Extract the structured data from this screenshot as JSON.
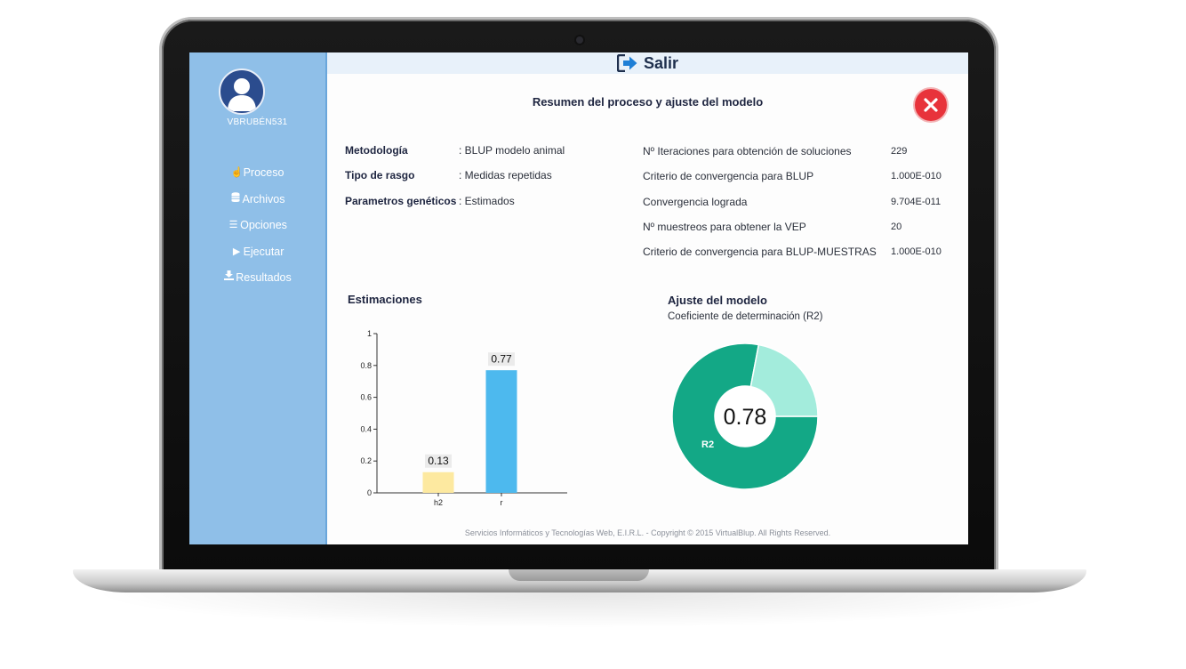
{
  "header": {
    "exit_label": "Salir"
  },
  "sidebar": {
    "username": "VBRUBÉN531",
    "items": [
      {
        "label": "Proceso",
        "icon": "hand-pointer-icon"
      },
      {
        "label": "Archivos",
        "icon": "database-icon"
      },
      {
        "label": "Opciones",
        "icon": "list-icon"
      },
      {
        "label": "Ejecutar",
        "icon": "play-icon"
      },
      {
        "label": "Resultados",
        "icon": "download-icon"
      }
    ]
  },
  "main": {
    "title": "Resumen del proceso y ajuste del modelo",
    "summary_left": [
      {
        "label": "Metodología",
        "value": ": BLUP modelo animal"
      },
      {
        "label": "Tipo de rasgo",
        "value": ": Medidas repetidas"
      },
      {
        "label": "Parametros genéticos",
        "value": ": Estimados"
      }
    ],
    "summary_right": [
      {
        "label": "Nº Iteraciones para obtención de soluciones",
        "value": "229"
      },
      {
        "label": "Criterio de convergencia para BLUP",
        "value": "1.000E-010"
      },
      {
        "label": "Convergencia lograda",
        "value": "9.704E-011"
      },
      {
        "label": "Nº muestreos para obtener la VEP",
        "value": "20"
      },
      {
        "label": "Criterio de convergencia para BLUP-MUESTRAS",
        "value": "1.000E-010"
      }
    ],
    "estimations_title": "Estimaciones",
    "fit_title": "Ajuste del modelo",
    "fit_subtitle": "Coeficiente de determinación (R2)"
  },
  "chart_data": [
    {
      "type": "bar",
      "title": "Estimaciones",
      "categories": [
        "h2",
        "r"
      ],
      "values": [
        0.13,
        0.77
      ],
      "value_labels": [
        "0.13",
        "0.77"
      ],
      "colors": [
        "#fde9a0",
        "#4db9ee"
      ],
      "ylim": [
        0,
        1
      ],
      "yticks": [
        "0",
        "0.2",
        "0.4",
        "0.6",
        "0.8",
        "1"
      ],
      "ytick_values": [
        0,
        0.2,
        0.4,
        0.6,
        0.8,
        1
      ],
      "grid": false
    },
    {
      "type": "pie",
      "title": "Ajuste del modelo",
      "slices": [
        {
          "label": "R2",
          "value": 0.78,
          "color": "#13a886"
        },
        {
          "label": "",
          "value": 0.22,
          "color": "#a3ecdc"
        }
      ],
      "center_label": "0.78",
      "donut": true
    }
  ],
  "footer": {
    "text": "Servicios Informáticos y Tecnologías Web, E.I.R.L. - Copyright © 2015 VirtualBlup. All Rights Reserved."
  },
  "colors": {
    "sidebar": "#8fbfe8",
    "accent": "#1e2f4d",
    "close": "#e8333b"
  }
}
